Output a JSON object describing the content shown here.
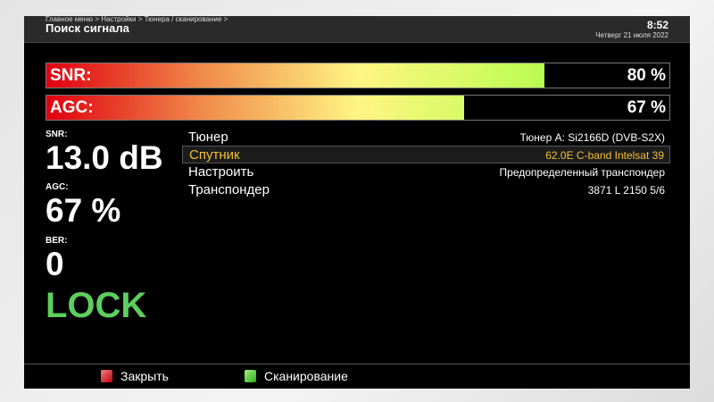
{
  "header": {
    "breadcrumb": "Главное меню > Настройки > Тюнера / сканирование >",
    "title": "Поиск сигнала",
    "time": "8:52",
    "date": "Четверг 21 июля 2022"
  },
  "bars": [
    {
      "label": "SNR:",
      "value_text": "80 %",
      "percent": 80
    },
    {
      "label": "AGC:",
      "value_text": "67 %",
      "percent": 67
    }
  ],
  "stats": {
    "snr_label": "SNR:",
    "snr_value": "13.0 dB",
    "agc_label": "AGC:",
    "agc_value": "67 %",
    "ber_label": "BER:",
    "ber_value": "0",
    "lock": "LOCK",
    "lock_color": "#5ccf5c"
  },
  "settings": [
    {
      "key": "Тюнер",
      "value": "Тюнер A: Si2166D (DVB-S2X)"
    },
    {
      "key": "Спутник",
      "value": "62.0E C-band Intelsat 39",
      "selected": true
    },
    {
      "key": "Настроить",
      "value": "Предопределенный транспондер"
    },
    {
      "key": "Транспондер",
      "value": "3871 L 2150 5/6"
    }
  ],
  "footer": {
    "red_label": "Закрыть",
    "green_label": "Сканирование"
  }
}
